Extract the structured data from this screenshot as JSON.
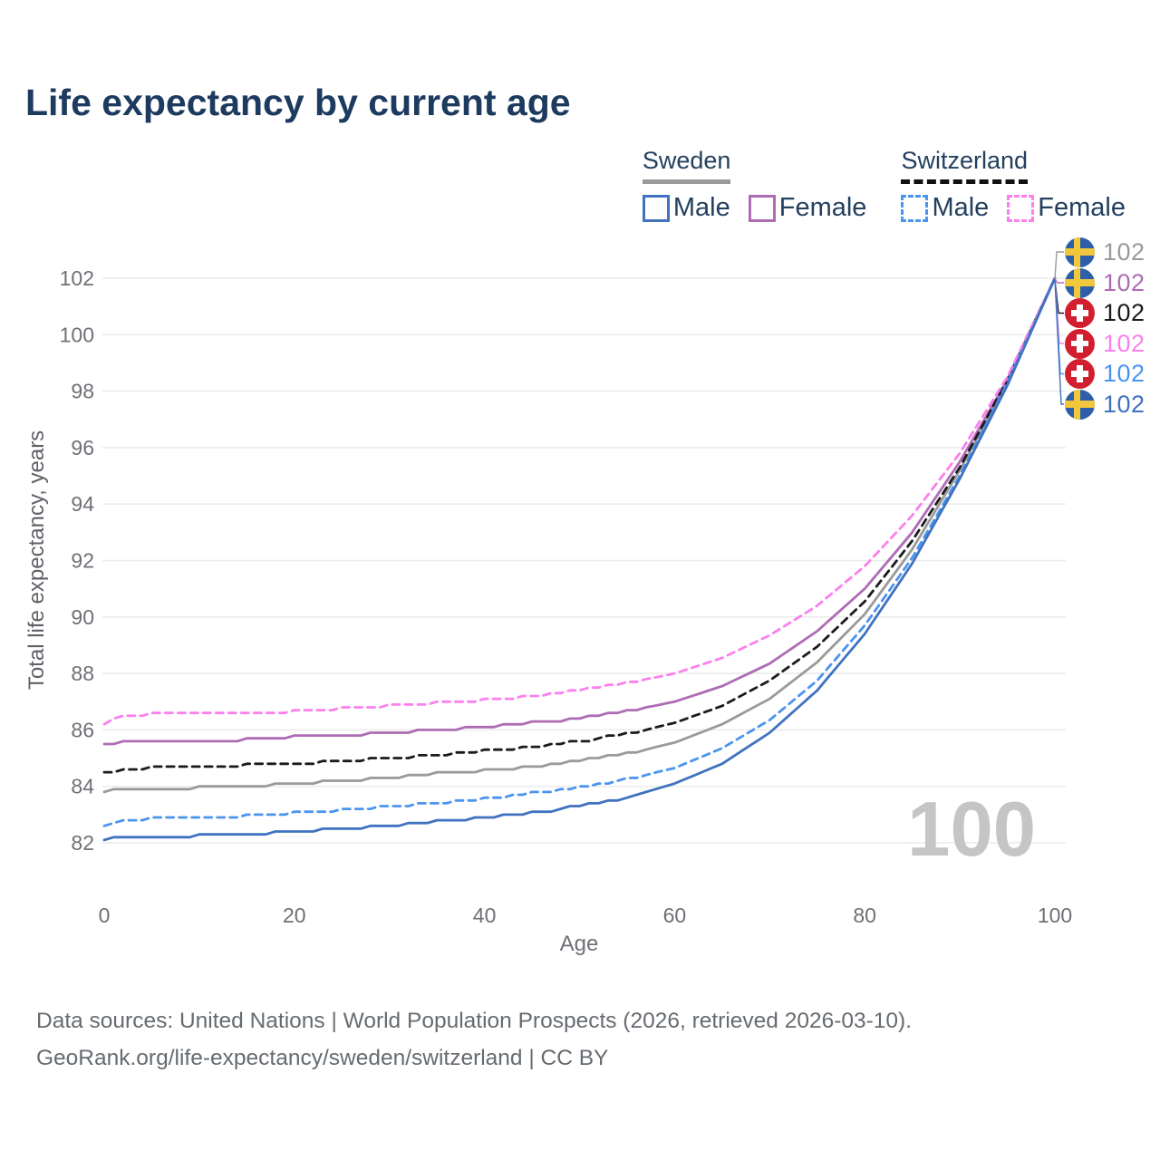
{
  "title": "Life expectancy by current age",
  "legend": {
    "groups": [
      {
        "title": "Sweden",
        "items": [
          {
            "label": "Male",
            "swatch_color": "#4072c0",
            "dashed": false
          },
          {
            "label": "Female",
            "swatch_color": "#ae6cb4",
            "dashed": false
          }
        ]
      },
      {
        "title": "Switzerland",
        "items": [
          {
            "label": "Male",
            "swatch_color": "#4b94f0",
            "dashed": true
          },
          {
            "label": "Female",
            "swatch_color": "#fb80ee",
            "dashed": true
          }
        ]
      }
    ]
  },
  "watermark": "100",
  "footer": {
    "line1": "Data sources: United Nations | World Population Prospects (2026, retrieved 2026-03-10).",
    "line2": "GeoRank.org/life-expectancy/sweden/switzerland | CC BY"
  },
  "chart_data": {
    "type": "line",
    "title": "Life expectancy by current age",
    "xlabel": "Age",
    "ylabel": "Total life expectancy, years",
    "xlim": [
      0,
      100
    ],
    "ylim": [
      82,
      102
    ],
    "grid": "horizontal",
    "xticks": [
      0,
      20,
      40,
      60,
      80,
      100
    ],
    "yticks": [
      82,
      84,
      86,
      88,
      90,
      92,
      94,
      96,
      98,
      100,
      102
    ],
    "x": [
      0,
      2,
      5,
      10,
      15,
      20,
      25,
      30,
      35,
      40,
      45,
      50,
      55,
      60,
      65,
      70,
      75,
      80,
      85,
      90,
      95,
      100
    ],
    "series": [
      {
        "name": "Sweden (both sexes)",
        "country": "Sweden",
        "flag": "SE",
        "color": "#9a9a9a",
        "dashed": false,
        "end_label": "102",
        "values": [
          83.8,
          83.9,
          83.9,
          83.95,
          84.0,
          84.1,
          84.2,
          84.3,
          84.45,
          84.55,
          84.7,
          84.9,
          85.15,
          85.55,
          86.2,
          87.1,
          88.4,
          90.1,
          92.4,
          95.2,
          98.3,
          102
        ]
      },
      {
        "name": "Sweden Female",
        "country": "Sweden",
        "flag": "SE",
        "color": "#ae6cb4",
        "dashed": false,
        "end_label": "102",
        "values": [
          85.5,
          85.55,
          85.6,
          85.6,
          85.65,
          85.75,
          85.8,
          85.9,
          86.0,
          86.1,
          86.25,
          86.4,
          86.65,
          87.0,
          87.55,
          88.35,
          89.5,
          91.0,
          93.0,
          95.5,
          98.4,
          102
        ]
      },
      {
        "name": "Switzerland (both sexes)",
        "country": "Switzerland",
        "flag": "CH",
        "color": "#1b1b1b",
        "dashed": true,
        "end_label": "102",
        "values": [
          84.45,
          84.6,
          84.65,
          84.7,
          84.75,
          84.8,
          84.9,
          85.0,
          85.1,
          85.25,
          85.4,
          85.6,
          85.85,
          86.25,
          86.85,
          87.75,
          88.95,
          90.55,
          92.7,
          95.3,
          98.4,
          102
        ]
      },
      {
        "name": "Switzerland Female",
        "country": "Switzerland",
        "flag": "CH",
        "color": "#fb80ee",
        "dashed": true,
        "end_label": "102",
        "values": [
          86.2,
          86.5,
          86.55,
          86.55,
          86.6,
          86.65,
          86.75,
          86.85,
          86.95,
          87.05,
          87.2,
          87.4,
          87.65,
          88.0,
          88.55,
          89.35,
          90.4,
          91.8,
          93.6,
          95.8,
          98.5,
          102
        ]
      },
      {
        "name": "Switzerland Male",
        "country": "Switzerland",
        "flag": "CH",
        "color": "#4b94f0",
        "dashed": true,
        "end_label": "102",
        "values": [
          82.6,
          82.8,
          82.85,
          82.9,
          82.95,
          83.05,
          83.15,
          83.3,
          83.4,
          83.55,
          83.75,
          83.95,
          84.25,
          84.65,
          85.35,
          86.35,
          87.75,
          89.7,
          92.1,
          95.0,
          98.3,
          102
        ]
      },
      {
        "name": "Sweden Male",
        "country": "Sweden",
        "flag": "SE",
        "color": "#4072c0",
        "dashed": false,
        "end_label": "102",
        "values": [
          82.1,
          82.2,
          82.2,
          82.25,
          82.3,
          82.4,
          82.5,
          82.6,
          82.75,
          82.9,
          83.05,
          83.3,
          83.6,
          84.1,
          84.8,
          85.9,
          87.4,
          89.4,
          91.9,
          94.9,
          98.2,
          102
        ]
      }
    ]
  }
}
